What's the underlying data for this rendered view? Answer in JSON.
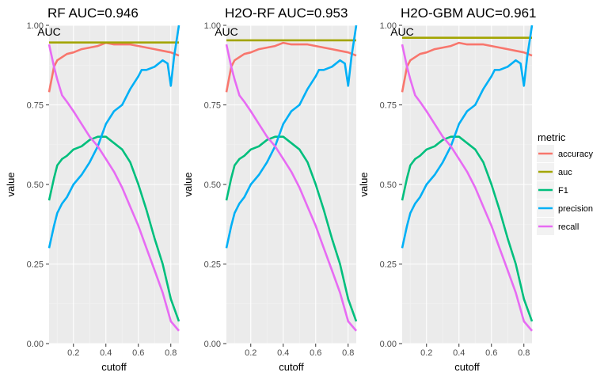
{
  "chart_data": [
    {
      "type": "line",
      "title": "RF AUC=0.946",
      "xlabel": "cutoff",
      "ylabel": "value",
      "xlim": [
        0.05,
        0.85
      ],
      "ylim": [
        0,
        1
      ],
      "xticks": [
        "0.2",
        "0.4",
        "0.6",
        "0.8"
      ],
      "xtick_values": [
        0.2,
        0.4,
        0.6,
        0.8
      ],
      "yticks": [
        "0.00",
        "0.25",
        "0.50",
        "0.75",
        "1.00"
      ],
      "ytick_values": [
        0,
        0.25,
        0.5,
        0.75,
        1.0
      ],
      "annotation": {
        "text": "AUC",
        "x": 0.05,
        "y": 0.98
      },
      "series": [
        {
          "name": "accuracy",
          "x": [
            0.05,
            0.08,
            0.1,
            0.13,
            0.16,
            0.2,
            0.25,
            0.3,
            0.35,
            0.4,
            0.45,
            0.5,
            0.55,
            0.6,
            0.65,
            0.7,
            0.75,
            0.8,
            0.85
          ],
          "y": [
            0.79,
            0.87,
            0.89,
            0.9,
            0.91,
            0.915,
            0.925,
            0.93,
            0.935,
            0.945,
            0.94,
            0.94,
            0.94,
            0.935,
            0.93,
            0.925,
            0.92,
            0.915,
            0.905
          ]
        },
        {
          "name": "auc",
          "x": [
            0.05,
            0.85
          ],
          "y": [
            0.946,
            0.946
          ]
        },
        {
          "name": "F1",
          "x": [
            0.05,
            0.08,
            0.1,
            0.13,
            0.16,
            0.2,
            0.25,
            0.3,
            0.35,
            0.4,
            0.45,
            0.5,
            0.55,
            0.6,
            0.65,
            0.7,
            0.75,
            0.8,
            0.85
          ],
          "y": [
            0.45,
            0.52,
            0.56,
            0.58,
            0.59,
            0.61,
            0.62,
            0.64,
            0.65,
            0.65,
            0.63,
            0.61,
            0.57,
            0.5,
            0.42,
            0.33,
            0.25,
            0.14,
            0.07
          ]
        },
        {
          "name": "precision",
          "x": [
            0.05,
            0.08,
            0.1,
            0.13,
            0.16,
            0.2,
            0.25,
            0.3,
            0.35,
            0.4,
            0.45,
            0.5,
            0.55,
            0.6,
            0.62,
            0.65,
            0.7,
            0.75,
            0.78,
            0.8,
            0.82,
            0.85
          ],
          "y": [
            0.3,
            0.37,
            0.41,
            0.44,
            0.46,
            0.5,
            0.53,
            0.57,
            0.62,
            0.69,
            0.73,
            0.75,
            0.8,
            0.84,
            0.86,
            0.86,
            0.87,
            0.89,
            0.88,
            0.81,
            0.9,
            1.0
          ]
        },
        {
          "name": "recall",
          "x": [
            0.05,
            0.08,
            0.1,
            0.13,
            0.16,
            0.2,
            0.25,
            0.3,
            0.35,
            0.4,
            0.45,
            0.5,
            0.55,
            0.6,
            0.65,
            0.7,
            0.75,
            0.8,
            0.85
          ],
          "y": [
            0.94,
            0.87,
            0.83,
            0.78,
            0.76,
            0.73,
            0.69,
            0.65,
            0.62,
            0.58,
            0.54,
            0.49,
            0.43,
            0.37,
            0.3,
            0.23,
            0.16,
            0.07,
            0.04
          ]
        }
      ]
    },
    {
      "type": "line",
      "title": "H2O-RF AUC=0.953",
      "xlabel": "cutoff",
      "ylabel": "value",
      "xlim": [
        0.05,
        0.85
      ],
      "ylim": [
        0,
        1
      ],
      "xticks": [
        "0.2",
        "0.4",
        "0.6",
        "0.8"
      ],
      "xtick_values": [
        0.2,
        0.4,
        0.6,
        0.8
      ],
      "yticks": [
        "0.00",
        "0.25",
        "0.50",
        "0.75",
        "1.00"
      ],
      "ytick_values": [
        0,
        0.25,
        0.5,
        0.75,
        1.0
      ],
      "annotation": {
        "text": "AUC",
        "x": 0.05,
        "y": 0.98
      },
      "series": [
        {
          "name": "accuracy",
          "x": [
            0.05,
            0.08,
            0.1,
            0.13,
            0.16,
            0.2,
            0.25,
            0.3,
            0.35,
            0.4,
            0.45,
            0.5,
            0.55,
            0.6,
            0.65,
            0.7,
            0.75,
            0.8,
            0.85
          ],
          "y": [
            0.79,
            0.87,
            0.89,
            0.9,
            0.91,
            0.915,
            0.925,
            0.93,
            0.935,
            0.945,
            0.94,
            0.94,
            0.94,
            0.935,
            0.93,
            0.925,
            0.92,
            0.915,
            0.905
          ]
        },
        {
          "name": "auc",
          "x": [
            0.05,
            0.85
          ],
          "y": [
            0.953,
            0.953
          ]
        },
        {
          "name": "F1",
          "x": [
            0.05,
            0.08,
            0.1,
            0.13,
            0.16,
            0.2,
            0.25,
            0.3,
            0.35,
            0.4,
            0.45,
            0.5,
            0.55,
            0.6,
            0.65,
            0.7,
            0.75,
            0.8,
            0.85
          ],
          "y": [
            0.45,
            0.52,
            0.56,
            0.58,
            0.59,
            0.61,
            0.62,
            0.64,
            0.65,
            0.65,
            0.63,
            0.61,
            0.57,
            0.5,
            0.42,
            0.33,
            0.25,
            0.14,
            0.07
          ]
        },
        {
          "name": "precision",
          "x": [
            0.05,
            0.08,
            0.1,
            0.13,
            0.16,
            0.2,
            0.25,
            0.3,
            0.35,
            0.4,
            0.45,
            0.5,
            0.55,
            0.6,
            0.62,
            0.65,
            0.7,
            0.75,
            0.78,
            0.8,
            0.82,
            0.85
          ],
          "y": [
            0.3,
            0.37,
            0.41,
            0.44,
            0.46,
            0.5,
            0.53,
            0.57,
            0.62,
            0.69,
            0.73,
            0.75,
            0.8,
            0.84,
            0.86,
            0.86,
            0.87,
            0.89,
            0.88,
            0.81,
            0.9,
            1.0
          ]
        },
        {
          "name": "recall",
          "x": [
            0.05,
            0.08,
            0.1,
            0.13,
            0.16,
            0.2,
            0.25,
            0.3,
            0.35,
            0.4,
            0.45,
            0.5,
            0.55,
            0.6,
            0.65,
            0.7,
            0.75,
            0.8,
            0.85
          ],
          "y": [
            0.94,
            0.87,
            0.83,
            0.78,
            0.76,
            0.73,
            0.69,
            0.65,
            0.62,
            0.58,
            0.54,
            0.49,
            0.43,
            0.37,
            0.3,
            0.23,
            0.16,
            0.07,
            0.04
          ]
        }
      ]
    },
    {
      "type": "line",
      "title": "H2O-GBM AUC=0.961",
      "xlabel": "cutoff",
      "ylabel": "value",
      "xlim": [
        0.05,
        0.85
      ],
      "ylim": [
        0,
        1
      ],
      "xticks": [
        "0.2",
        "0.4",
        "0.6",
        "0.8"
      ],
      "xtick_values": [
        0.2,
        0.4,
        0.6,
        0.8
      ],
      "yticks": [
        "0.00",
        "0.25",
        "0.50",
        "0.75",
        "1.00"
      ],
      "ytick_values": [
        0,
        0.25,
        0.5,
        0.75,
        1.0
      ],
      "annotation": {
        "text": "AUC",
        "x": 0.05,
        "y": 0.98
      },
      "series": [
        {
          "name": "accuracy",
          "x": [
            0.05,
            0.08,
            0.1,
            0.13,
            0.16,
            0.2,
            0.25,
            0.3,
            0.35,
            0.4,
            0.45,
            0.5,
            0.55,
            0.6,
            0.65,
            0.7,
            0.75,
            0.8,
            0.85
          ],
          "y": [
            0.79,
            0.87,
            0.89,
            0.9,
            0.91,
            0.915,
            0.925,
            0.93,
            0.935,
            0.945,
            0.94,
            0.94,
            0.94,
            0.935,
            0.93,
            0.925,
            0.92,
            0.915,
            0.905
          ]
        },
        {
          "name": "auc",
          "x": [
            0.05,
            0.85
          ],
          "y": [
            0.961,
            0.961
          ]
        },
        {
          "name": "F1",
          "x": [
            0.05,
            0.08,
            0.1,
            0.13,
            0.16,
            0.2,
            0.25,
            0.3,
            0.35,
            0.4,
            0.45,
            0.5,
            0.55,
            0.6,
            0.65,
            0.7,
            0.75,
            0.8,
            0.85
          ],
          "y": [
            0.45,
            0.52,
            0.56,
            0.58,
            0.59,
            0.61,
            0.62,
            0.64,
            0.65,
            0.65,
            0.63,
            0.61,
            0.57,
            0.5,
            0.42,
            0.33,
            0.25,
            0.14,
            0.07
          ]
        },
        {
          "name": "precision",
          "x": [
            0.05,
            0.08,
            0.1,
            0.13,
            0.16,
            0.2,
            0.25,
            0.3,
            0.35,
            0.4,
            0.45,
            0.5,
            0.55,
            0.6,
            0.62,
            0.65,
            0.7,
            0.75,
            0.78,
            0.8,
            0.82,
            0.85
          ],
          "y": [
            0.3,
            0.37,
            0.41,
            0.44,
            0.46,
            0.5,
            0.53,
            0.57,
            0.62,
            0.69,
            0.73,
            0.75,
            0.8,
            0.84,
            0.86,
            0.86,
            0.87,
            0.89,
            0.88,
            0.81,
            0.9,
            1.0
          ]
        },
        {
          "name": "recall",
          "x": [
            0.05,
            0.08,
            0.1,
            0.13,
            0.16,
            0.2,
            0.25,
            0.3,
            0.35,
            0.4,
            0.45,
            0.5,
            0.55,
            0.6,
            0.65,
            0.7,
            0.75,
            0.8,
            0.85
          ],
          "y": [
            0.94,
            0.87,
            0.83,
            0.78,
            0.76,
            0.73,
            0.69,
            0.65,
            0.62,
            0.58,
            0.54,
            0.49,
            0.43,
            0.37,
            0.3,
            0.23,
            0.16,
            0.07,
            0.04
          ]
        }
      ]
    }
  ],
  "legend": {
    "title": "metric",
    "position": "right",
    "items": [
      {
        "label": "accuracy",
        "color": "#F8766D"
      },
      {
        "label": "auc",
        "color": "#A3A500"
      },
      {
        "label": "F1",
        "color": "#00BF7D"
      },
      {
        "label": "precision",
        "color": "#00B0F6"
      },
      {
        "label": "recall",
        "color": "#E76BF3"
      }
    ]
  },
  "theme": {
    "panel_background": "#EBEBEB",
    "grid_major": "#FFFFFF",
    "grid_minor": "#F3F3F3",
    "grid": true
  }
}
